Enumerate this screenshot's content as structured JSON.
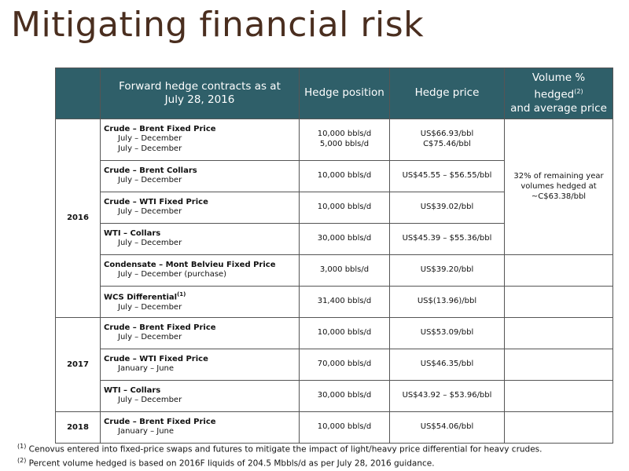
{
  "title": "Mitigating financial risk",
  "headers": {
    "contracts_line1": "Forward hedge contracts as at",
    "contracts_line2": "July 28, 2016",
    "position": "Hedge position",
    "price": "Hedge price",
    "volume_line1": "Volume % hedged",
    "volume_sup": "(2)",
    "volume_line2": "and average price"
  },
  "years": {
    "y2016": "2016",
    "y2017": "2017",
    "y2018": "2018"
  },
  "rows": [
    {
      "name": "Crude – Brent Fixed Price",
      "periods": [
        "July – December",
        "July – December"
      ],
      "positions": [
        "10,000 bbls/d",
        "5,000 bbls/d"
      ],
      "prices": [
        "US$66.93/bbl",
        "C$75.46/bbl"
      ]
    },
    {
      "name": "Crude – Brent Collars",
      "periods": [
        "July – December"
      ],
      "positions": [
        "10,000 bbls/d"
      ],
      "prices": [
        "US$45.55 – $56.55/bbl"
      ]
    },
    {
      "name": "Crude – WTI Fixed Price",
      "periods": [
        "July – December"
      ],
      "positions": [
        "10,000 bbls/d"
      ],
      "prices": [
        "US$39.02/bbl"
      ]
    },
    {
      "name": "WTI – Collars",
      "periods": [
        "July – December"
      ],
      "positions": [
        "30,000 bbls/d"
      ],
      "prices": [
        "US$45.39 – $55.36/bbl"
      ]
    },
    {
      "name": "Condensate – Mont Belvieu Fixed Price",
      "periods": [
        "July – December (purchase)"
      ],
      "positions": [
        "3,000 bbls/d"
      ],
      "prices": [
        "US$39.20/bbl"
      ]
    },
    {
      "name": "WCS Differential",
      "sup": "(1)",
      "periods": [
        "July – December"
      ],
      "positions": [
        "31,400 bbls/d"
      ],
      "prices": [
        "US$(13.96)/bbl"
      ]
    },
    {
      "name": "Crude – Brent Fixed Price",
      "periods": [
        "July – December"
      ],
      "positions": [
        "10,000 bbls/d"
      ],
      "prices": [
        "US$53.09/bbl"
      ]
    },
    {
      "name": "Crude – WTI Fixed Price",
      "periods": [
        "January – June"
      ],
      "positions": [
        "70,000 bbls/d"
      ],
      "prices": [
        "US$46.35/bbl"
      ]
    },
    {
      "name": "WTI – Collars",
      "periods": [
        "July – December"
      ],
      "positions": [
        "30,000 bbls/d"
      ],
      "prices": [
        "US$43.92 – $53.96/bbl"
      ]
    },
    {
      "name": "Crude – Brent Fixed Price",
      "periods": [
        "January – June"
      ],
      "positions": [
        "10,000 bbls/d"
      ],
      "prices": [
        "US$54.06/bbl"
      ]
    }
  ],
  "volume_note": [
    "32% of remaining year",
    "volumes hedged at",
    "~C$63.38/bbl"
  ],
  "footnotes": [
    {
      "marker": "(1)",
      "text": " Cenovus entered into fixed-price swaps and futures to mitigate the impact of light/heavy price differential for heavy crudes."
    },
    {
      "marker": "(2)",
      "text": " Percent volume hedged is based on 2016F liquids of 204.5 Mbbls/d as per July 28, 2016 guidance."
    }
  ],
  "colors": {
    "header_bg": "#2f5f69",
    "title": "#4a2e1f"
  }
}
